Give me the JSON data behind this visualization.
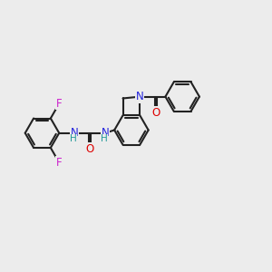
{
  "background_color": "#ececec",
  "bond_color": "#222222",
  "bond_width": 1.5,
  "atom_colors": {
    "N": "#2222dd",
    "O": "#dd0000",
    "F": "#cc22cc",
    "H": "#229999",
    "C": "#222222"
  },
  "font_size_atom": 8.5,
  "bl": 0.115,
  "figsize": [
    3.0,
    3.0
  ],
  "dpi": 100,
  "xlim": [
    -0.92,
    0.92
  ],
  "ylim": [
    -0.55,
    0.55
  ]
}
